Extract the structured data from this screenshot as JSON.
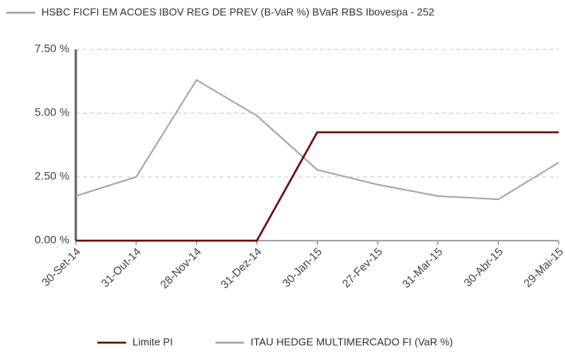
{
  "chart_data": {
    "type": "line",
    "categories": [
      "30-Set-14",
      "31-Out-14",
      "28-Nov-14",
      "31-Dez-14",
      "30-Jan-15",
      "27-Fev-15",
      "31-Mar-15",
      "30-Abr-15",
      "29-Mai-15"
    ],
    "series": [
      {
        "name": "HSBC FICFI EM ACOES IBOV REG DE PREV (B-VaR %) BVaR RBS Ibovespa - 252",
        "color": "#a3a7ab",
        "values": [
          0,
          0,
          0,
          0,
          0,
          0,
          0,
          0,
          0
        ]
      },
      {
        "name": "Limite PI",
        "color": "#6b1010",
        "values": [
          0,
          0,
          0,
          0,
          4.25,
          4.25,
          4.25,
          4.25,
          4.25
        ]
      },
      {
        "name": "ITAU HEDGE MULTIMERCADO FI (VaR %)",
        "color": "#a3a8ad",
        "values": [
          1.75,
          2.5,
          6.3,
          4.9,
          2.78,
          2.2,
          1.75,
          1.62,
          3.06
        ]
      }
    ],
    "ylim": [
      0,
      7.5
    ],
    "yticks": [
      {
        "value": 0,
        "label": "0.00 %"
      },
      {
        "value": 2.5,
        "label": "2.50 %"
      },
      {
        "value": 5,
        "label": "5.00 %"
      },
      {
        "value": 7.5,
        "label": "7.50 %"
      }
    ],
    "grid": true
  }
}
